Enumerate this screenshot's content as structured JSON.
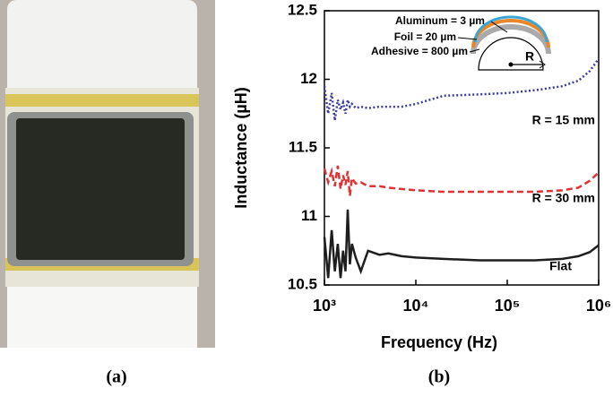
{
  "captions": [
    "(a)",
    "(b)"
  ],
  "chart_data": {
    "type": "line",
    "xlabel": "Frequency (Hz)",
    "ylabel": "Inductance (µH)",
    "xscale": "log",
    "x": [
      1000,
      1100,
      1200,
      1300,
      1400,
      1500,
      1600,
      1700,
      1800,
      1900,
      2000,
      2200,
      2500,
      3000,
      4000,
      5000,
      7000,
      10000,
      20000,
      50000,
      100000,
      200000,
      400000,
      600000,
      800000,
      1000000
    ],
    "xlim": [
      1000,
      1000000
    ],
    "xticks": [
      {
        "value": 1000,
        "label": "10³"
      },
      {
        "value": 10000,
        "label": "10⁴"
      },
      {
        "value": 100000,
        "label": "10⁵"
      },
      {
        "value": 1000000,
        "label": "10⁶"
      }
    ],
    "ylim": [
      10.5,
      12.5
    ],
    "yticks": [
      10.5,
      11,
      11.5,
      12,
      12.5
    ],
    "series": [
      {
        "name": "R = 15 mm",
        "color": "#3b3ba6",
        "style": "dotted",
        "values": [
          11.95,
          11.75,
          11.9,
          11.7,
          11.85,
          11.78,
          11.83,
          11.75,
          11.85,
          11.8,
          11.82,
          11.79,
          11.8,
          11.79,
          11.8,
          11.8,
          11.8,
          11.82,
          11.88,
          11.89,
          11.9,
          11.92,
          11.95,
          11.99,
          12.06,
          12.15
        ]
      },
      {
        "name": "R = 30 mm",
        "color": "#e03232",
        "style": "dashed",
        "values": [
          11.35,
          11.25,
          11.33,
          11.22,
          11.37,
          11.2,
          11.3,
          11.23,
          11.33,
          11.15,
          11.28,
          11.24,
          11.25,
          11.22,
          11.22,
          11.21,
          11.2,
          11.19,
          11.18,
          11.18,
          11.18,
          11.18,
          11.19,
          11.21,
          11.26,
          11.32
        ]
      },
      {
        "name": "Flat",
        "color": "#1e1e1e",
        "style": "solid",
        "values": [
          10.85,
          10.55,
          10.9,
          10.6,
          10.8,
          10.55,
          10.75,
          10.6,
          11.05,
          10.65,
          10.8,
          10.7,
          10.6,
          10.75,
          10.72,
          10.73,
          10.71,
          10.7,
          10.69,
          10.68,
          10.68,
          10.68,
          10.69,
          10.71,
          10.74,
          10.79
        ]
      }
    ],
    "inset": {
      "labels": [
        "Aluminum = 3 µm",
        "Foil = 20 µm",
        "Adhesive = 800 µm"
      ],
      "radius_label": "R"
    }
  }
}
